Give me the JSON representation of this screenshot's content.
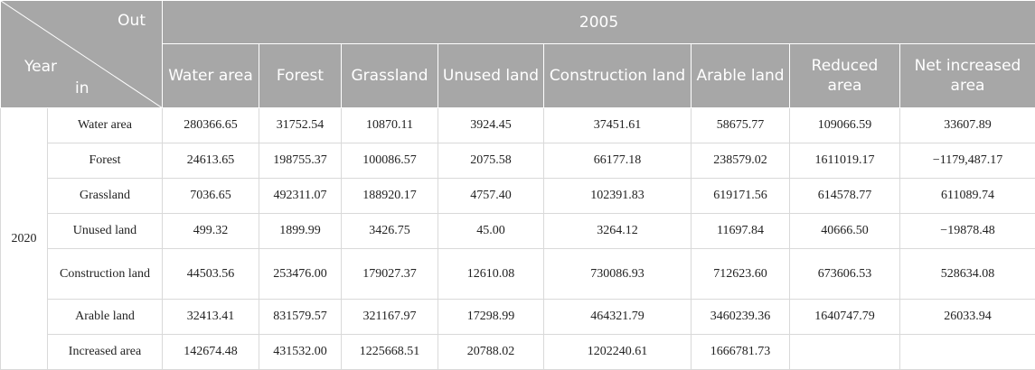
{
  "table": {
    "corner": {
      "out": "Out",
      "year": "Year",
      "in": "in"
    },
    "year_from": "2005",
    "columns": [
      "Water area",
      "Forest",
      "Grassland",
      "Unused land",
      "Construction land",
      "Arable land",
      "Reduced area",
      "Net increased area"
    ],
    "year_to": "2020",
    "rows": [
      {
        "label": "Water area",
        "cells": [
          "280366.65",
          "31752.54",
          "10870.11",
          "3924.45",
          "37451.61",
          "58675.77",
          "109066.59",
          "33607.89"
        ]
      },
      {
        "label": "Forest",
        "cells": [
          "24613.65",
          "198755.37",
          "100086.57",
          "2075.58",
          "66177.18",
          "238579.02",
          "1611019.17",
          "−1179,487.17"
        ]
      },
      {
        "label": "Grassland",
        "cells": [
          "7036.65",
          "492311.07",
          "188920.17",
          "4757.40",
          "102391.83",
          "619171.56",
          "614578.77",
          "611089.74"
        ]
      },
      {
        "label": "Unused land",
        "cells": [
          "499.32",
          "1899.99",
          "3426.75",
          "45.00",
          "3264.12",
          "11697.84",
          "40666.50",
          "−19878.48"
        ]
      },
      {
        "label": "Construction land",
        "cells": [
          "44503.56",
          "253476.00",
          "179027.37",
          "12610.08",
          "730086.93",
          "712623.60",
          "673606.53",
          "528634.08"
        ]
      },
      {
        "label": "Arable land",
        "cells": [
          "32413.41",
          "831579.57",
          "321167.97",
          "17298.99",
          "464321.79",
          "3460239.36",
          "1640747.79",
          "26033.94"
        ]
      },
      {
        "label": "Increased area",
        "cells": [
          "142674.48",
          "431532.00",
          "1225668.51",
          "20788.02",
          "1202240.61",
          "1666781.73",
          "",
          ""
        ]
      }
    ]
  }
}
